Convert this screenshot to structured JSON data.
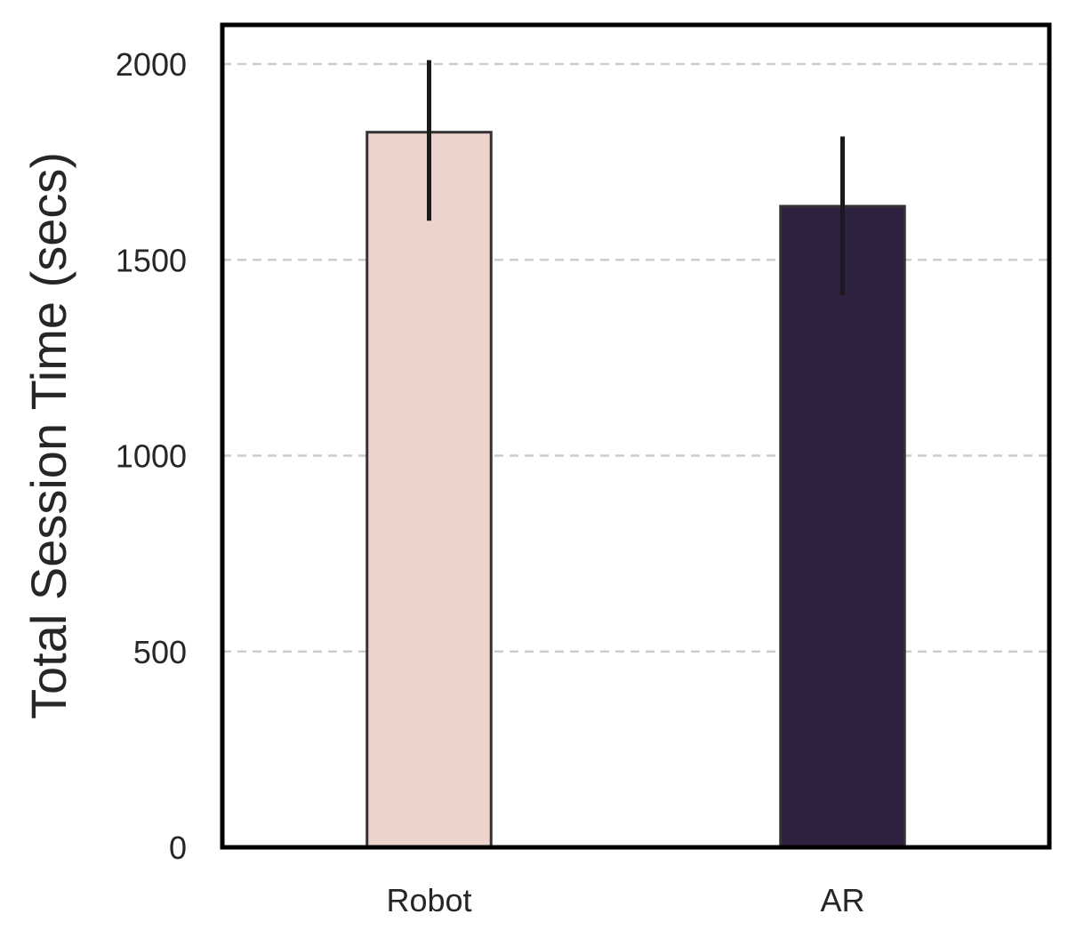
{
  "chart_data": {
    "type": "bar",
    "title": "",
    "xlabel": "",
    "ylabel": "Total Session Time (secs)",
    "categories": [
      "Robot",
      "AR"
    ],
    "values": [
      1826,
      1637
    ],
    "error_bars": [
      {
        "low": 1600,
        "high": 2010
      },
      {
        "low": 1410,
        "high": 1815
      }
    ],
    "ylim": [
      0,
      2100
    ],
    "yticks": [
      0,
      500,
      1000,
      1500,
      2000
    ],
    "grid": "horizontal-dashed",
    "legend": "none",
    "colors": {
      "bars": [
        "#ecd3cc",
        "#2e203f"
      ],
      "bar_edge": "#333333",
      "error_bar": "#1a1a1a",
      "grid": "#cccccc",
      "frame": "#000000",
      "text": "#262626"
    }
  }
}
